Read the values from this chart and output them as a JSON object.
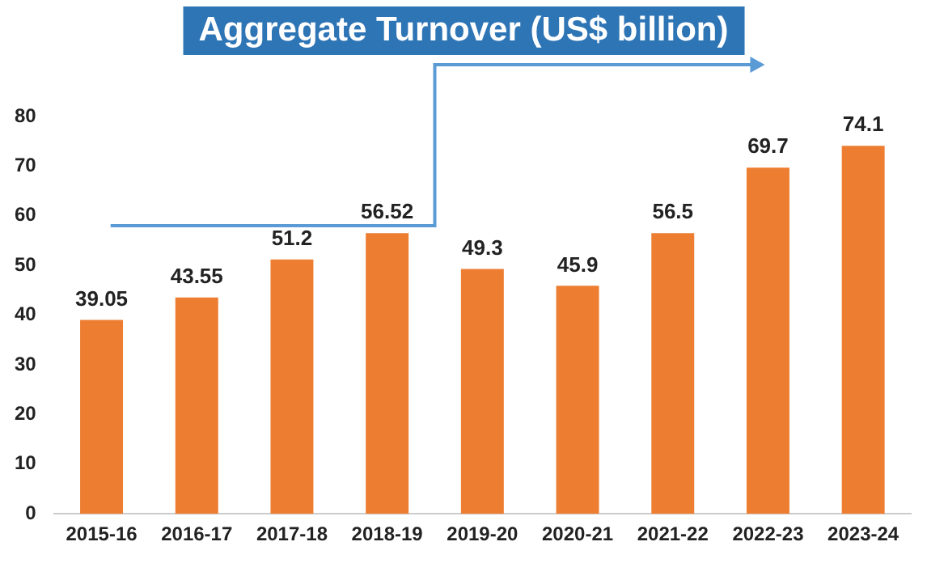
{
  "chart_data": {
    "type": "bar",
    "title": "Aggregate Turnover (US$ billion)",
    "categories": [
      "2015-16",
      "2016-17",
      "2017-18",
      "2018-19",
      "2019-20",
      "2020-21",
      "2021-22",
      "2022-23",
      "2023-24"
    ],
    "values": [
      39.05,
      43.55,
      51.2,
      56.52,
      49.3,
      45.9,
      56.5,
      69.7,
      74.1
    ],
    "color": "#ed7d31",
    "ylim": [
      0,
      80
    ],
    "yticks": [
      0,
      10,
      20,
      30,
      40,
      50,
      60,
      70,
      80
    ],
    "grid": false,
    "data_labels": true
  }
}
